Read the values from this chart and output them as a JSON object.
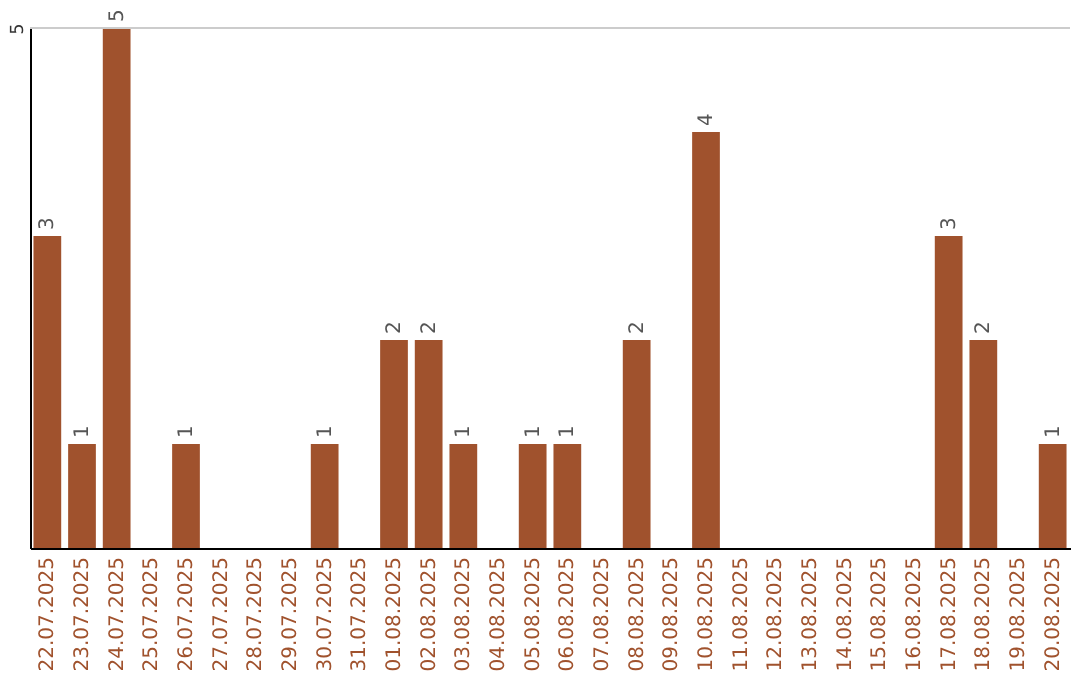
{
  "chart_data": {
    "type": "bar",
    "categories": [
      "22.07.2025",
      "23.07.2025",
      "24.07.2025",
      "25.07.2025",
      "26.07.2025",
      "27.07.2025",
      "28.07.2025",
      "29.07.2025",
      "30.07.2025",
      "31.07.2025",
      "01.08.2025",
      "02.08.2025",
      "03.08.2025",
      "04.08.2025",
      "05.08.2025",
      "06.08.2025",
      "07.08.2025",
      "08.08.2025",
      "09.08.2025",
      "10.08.2025",
      "11.08.2025",
      "12.08.2025",
      "13.08.2025",
      "14.08.2025",
      "15.08.2025",
      "16.08.2025",
      "17.08.2025",
      "18.08.2025",
      "19.08.2025",
      "20.08.2025"
    ],
    "values": [
      3,
      1,
      5,
      0,
      1,
      0,
      0,
      0,
      1,
      0,
      2,
      2,
      1,
      0,
      1,
      1,
      0,
      2,
      0,
      4,
      0,
      0,
      0,
      0,
      0,
      0,
      3,
      2,
      0,
      1
    ],
    "value_labels": [
      "3",
      "1",
      "5",
      null,
      "1",
      null,
      null,
      null,
      "1",
      null,
      "2",
      "2",
      "1",
      null,
      "1",
      "1",
      null,
      "2",
      null,
      "4",
      null,
      null,
      null,
      null,
      null,
      null,
      "3",
      "2",
      null,
      "1"
    ],
    "color": "#a0522d",
    "ylim": [
      0,
      5
    ],
    "yticks": [
      5
    ],
    "ref_lines": [
      {
        "axis": "y",
        "value": 5,
        "color": "#cccccc"
      }
    ]
  }
}
